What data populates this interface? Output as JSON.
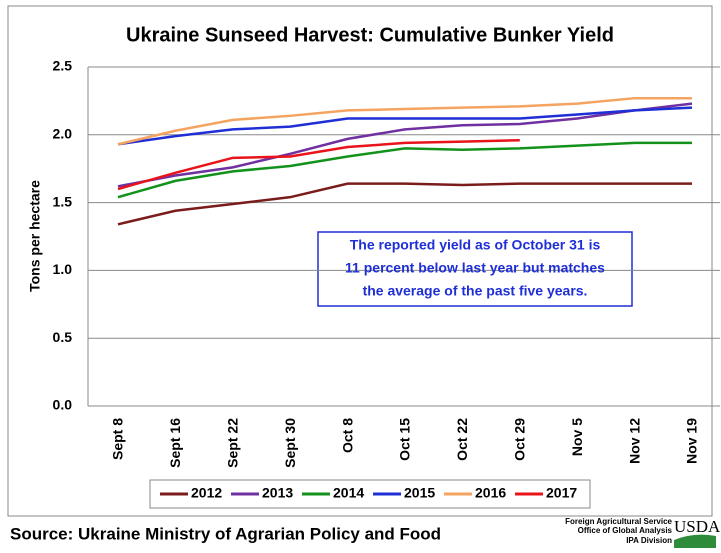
{
  "chart_data": {
    "type": "line",
    "title": "Ukraine Sunseed Harvest: Cumulative Bunker Yield",
    "ylabel": "Tons per hectare",
    "categories": [
      "Sept 8",
      "Sept 16",
      "Sept 22",
      "Sept 30",
      "Oct 8",
      "Oct 15",
      "Oct 22",
      "Oct 29",
      "Nov 5",
      "Nov 12",
      "Nov 19"
    ],
    "series": [
      {
        "name": "2012",
        "color": "#7b1c1c",
        "values": [
          1.34,
          1.44,
          1.49,
          1.54,
          1.64,
          1.64,
          1.63,
          1.64,
          1.64,
          1.64,
          1.64
        ]
      },
      {
        "name": "2013",
        "color": "#7030a0",
        "values": [
          1.62,
          1.7,
          1.76,
          1.86,
          1.97,
          2.04,
          2.07,
          2.08,
          2.12,
          2.18,
          2.23
        ]
      },
      {
        "name": "2014",
        "color": "#12921a",
        "values": [
          1.54,
          1.66,
          1.73,
          1.77,
          1.84,
          1.9,
          1.89,
          1.9,
          1.92,
          1.94,
          1.94
        ]
      },
      {
        "name": "2015",
        "color": "#1f2fd6",
        "values": [
          1.93,
          1.99,
          2.04,
          2.06,
          2.12,
          2.12,
          2.12,
          2.12,
          2.15,
          2.18,
          2.2
        ]
      },
      {
        "name": "2016",
        "color": "#f4a460",
        "values": [
          1.93,
          2.03,
          2.11,
          2.14,
          2.18,
          2.19,
          2.2,
          2.21,
          2.23,
          2.27,
          2.27
        ]
      },
      {
        "name": "2017",
        "color": "#e8141a",
        "values": [
          1.6,
          1.72,
          1.83,
          1.84,
          1.91,
          1.94,
          1.95,
          1.96,
          null,
          null,
          null
        ]
      }
    ],
    "ylim": [
      0,
      2.5
    ],
    "yticks": [
      {
        "value": 0,
        "label": "0.0"
      },
      0.5,
      {
        "value": 1,
        "label": "1.0"
      },
      1.5,
      {
        "value": 2,
        "label": "2.0"
      },
      2.5
    ],
    "grid": true,
    "legend": "bottom",
    "annotation": [
      "The reported yield as of October 31 is",
      "11 percent below last year but matches",
      "the average of the past five years."
    ],
    "source": "Source: Ukraine Ministry of Agrarian Policy and Food",
    "logo": [
      "Foreign Agricultural Service",
      "Office of Global Analysis",
      "IPA Division",
      "USDA"
    ]
  }
}
